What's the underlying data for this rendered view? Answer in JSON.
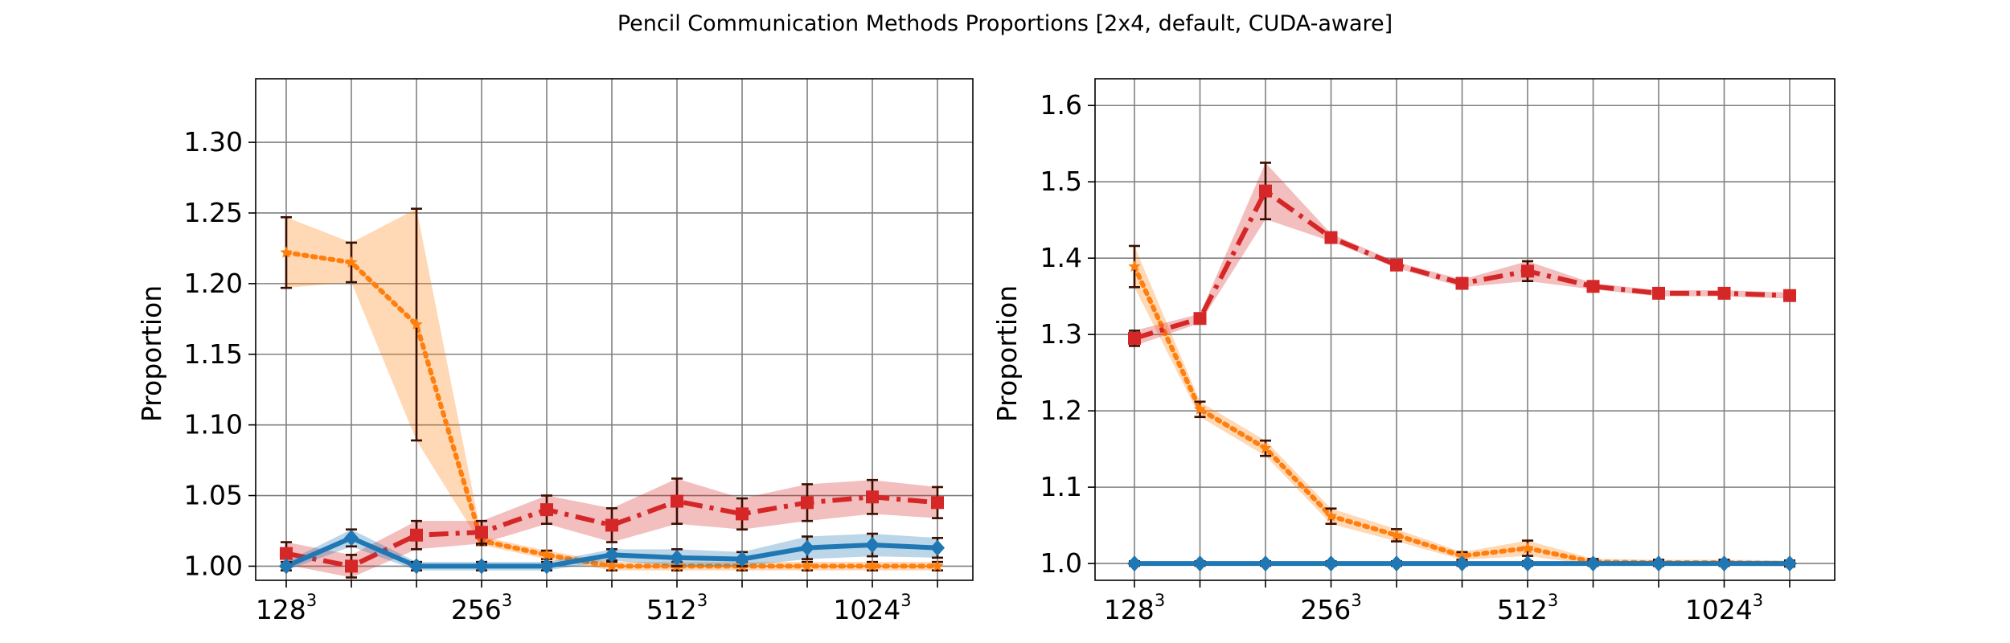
{
  "title": "Pencil Communication Methods Proportions [2x4, default, CUDA-aware]",
  "colors": {
    "blue": "#1f77b4",
    "orange": "#ff7f0e",
    "red": "#d62728",
    "errorbar": "#3a0f00",
    "grid": "#808080"
  },
  "chart_data": [
    {
      "type": "line",
      "ylabel": "Proportion",
      "xlabel": "",
      "ylim": [
        0.99,
        1.345
      ],
      "yticks": [
        "1.00",
        "1.05",
        "1.10",
        "1.15",
        "1.20",
        "1.25",
        "1.30"
      ],
      "x": [
        0,
        1,
        2,
        3,
        4,
        5,
        6,
        7,
        8,
        9,
        10
      ],
      "xticks": [
        {
          "base": "128",
          "exp": "3",
          "at": 0
        },
        {
          "base": "256",
          "exp": "3",
          "at": 3
        },
        {
          "base": "512",
          "exp": "3",
          "at": 6
        },
        {
          "base": "1024",
          "exp": "3",
          "at": 9
        }
      ],
      "grid": true,
      "series": [
        {
          "color": "orange",
          "linestyle": "dotted",
          "marker": "star",
          "values": [
            1.222,
            1.215,
            1.171,
            1.018,
            1.008,
            1.0,
            1.0,
            1.0,
            1.0,
            1.0,
            1.0
          ],
          "err": [
            0.025,
            0.014,
            0.082,
            0.003,
            0.003,
            0.003,
            0.003,
            0.003,
            0.003,
            0.003,
            0.003
          ]
        },
        {
          "color": "red",
          "linestyle": "dashdot",
          "marker": "square",
          "values": [
            1.009,
            1.0,
            1.022,
            1.024,
            1.04,
            1.029,
            1.046,
            1.037,
            1.045,
            1.049,
            1.045
          ],
          "err": [
            0.008,
            0.008,
            0.01,
            0.008,
            0.01,
            0.012,
            0.016,
            0.011,
            0.013,
            0.012,
            0.011
          ]
        },
        {
          "color": "blue",
          "linestyle": "solid",
          "marker": "diamond",
          "values": [
            1.0,
            1.02,
            1.0,
            1.0,
            1.0,
            1.008,
            1.006,
            1.005,
            1.013,
            1.015,
            1.013
          ],
          "err": [
            0.003,
            0.006,
            0.003,
            0.003,
            0.003,
            0.004,
            0.006,
            0.005,
            0.008,
            0.008,
            0.007
          ]
        }
      ]
    },
    {
      "type": "line",
      "ylabel": "Proportion",
      "xlabel": "",
      "ylim": [
        0.978,
        1.635
      ],
      "yticks": [
        "1.0",
        "1.1",
        "1.2",
        "1.3",
        "1.4",
        "1.5",
        "1.6"
      ],
      "x": [
        0,
        1,
        2,
        3,
        4,
        5,
        6,
        7,
        8,
        9,
        10
      ],
      "xticks": [
        {
          "base": "128",
          "exp": "3",
          "at": 0
        },
        {
          "base": "256",
          "exp": "3",
          "at": 3
        },
        {
          "base": "512",
          "exp": "3",
          "at": 6
        },
        {
          "base": "1024",
          "exp": "3",
          "at": 9
        }
      ],
      "grid": true,
      "series": [
        {
          "color": "orange",
          "linestyle": "dotted",
          "marker": "star",
          "values": [
            1.389,
            1.202,
            1.151,
            1.062,
            1.037,
            1.01,
            1.02,
            1.002,
            1.001,
            1.001,
            1.0
          ],
          "err": [
            0.027,
            0.01,
            0.01,
            0.01,
            0.008,
            0.005,
            0.01,
            0.004,
            0.004,
            0.004,
            0.004
          ]
        },
        {
          "color": "red",
          "linestyle": "dashdot",
          "marker": "square",
          "values": [
            1.295,
            1.321,
            1.488,
            1.427,
            1.391,
            1.367,
            1.383,
            1.363,
            1.354,
            1.354,
            1.351
          ],
          "err": [
            0.01,
            0.006,
            0.037,
            0.005,
            0.004,
            0.005,
            0.013,
            0.004,
            0.004,
            0.004,
            0.004
          ]
        },
        {
          "color": "blue",
          "linestyle": "solid",
          "marker": "diamond",
          "values": [
            1.0,
            1.0,
            1.0,
            1.0,
            1.0,
            1.0,
            1.0,
            1.0,
            1.0,
            1.0,
            1.0
          ],
          "err": [
            0.003,
            0.003,
            0.003,
            0.003,
            0.003,
            0.003,
            0.003,
            0.003,
            0.003,
            0.003,
            0.003
          ]
        }
      ]
    }
  ]
}
